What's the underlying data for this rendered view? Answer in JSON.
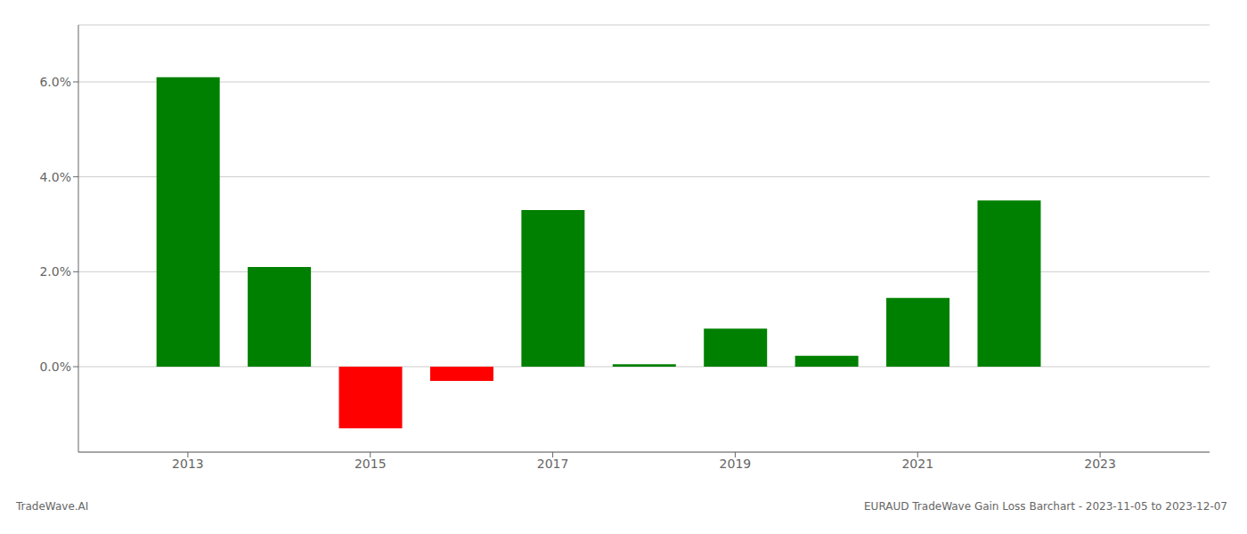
{
  "chart_data": {
    "type": "bar",
    "x": [
      2013,
      2014,
      2015,
      2016,
      2017,
      2018,
      2019,
      2020,
      2021,
      2022,
      2023
    ],
    "values": [
      0.061,
      0.021,
      -0.013,
      -0.003,
      0.033,
      0.0005,
      0.008,
      0.0023,
      0.0145,
      0.035,
      null
    ],
    "colors": [
      "#008000",
      "#008000",
      "#FF0000",
      "#FF0000",
      "#008000",
      "#008000",
      "#008000",
      "#008000",
      "#008000",
      "#008000",
      null
    ],
    "xlim": [
      2011.8,
      2024.2
    ],
    "xticks": [
      2013,
      2015,
      2017,
      2019,
      2021,
      2023
    ],
    "ylim": [
      -0.018,
      0.072
    ],
    "yticks": [
      {
        "value": 0.0,
        "label": "0.0%"
      },
      {
        "value": 0.02,
        "label": "2.0%"
      },
      {
        "value": 0.04,
        "label": "4.0%"
      },
      {
        "value": 0.06,
        "label": "6.0%"
      }
    ],
    "grid": true,
    "annotations": [
      "TradeWave.AI",
      "EURAUD TradeWave Gain Loss Barchart - 2023-11-05 to 2023-12-07"
    ]
  }
}
